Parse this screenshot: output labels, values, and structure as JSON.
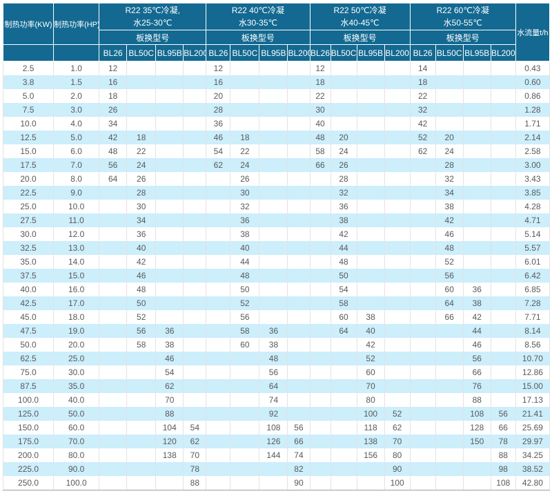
{
  "colors": {
    "header_bg": "#136991",
    "header_text": "#ffffff",
    "row_stripe": "#cdeefb",
    "row_plain": "#ffffff",
    "body_text": "#58595b"
  },
  "table": {
    "header": {
      "kw": "制热功率(KW)",
      "hp": "制热功率(HP)",
      "flow": "水流量t/h",
      "model_label": "板换型号",
      "models": [
        "BL26",
        "BL50C",
        "BL95B",
        "BL200"
      ],
      "groups": [
        {
          "line1": "R22 35℃冷凝,",
          "line2": "水25-30℃"
        },
        {
          "line1": "R22 40℃冷凝",
          "line2": "水30-35℃"
        },
        {
          "line1": "R22 50℃冷凝",
          "line2": "水40-45℃"
        },
        {
          "line1": "R22 60℃冷凝",
          "line2": "水50-55℃"
        }
      ]
    },
    "rows": [
      [
        "2.5",
        "1.0",
        "12",
        "",
        "",
        "",
        "12",
        "",
        "",
        "",
        "12",
        "",
        "",
        "",
        "14",
        "",
        "",
        "",
        "0.43"
      ],
      [
        "3.8",
        "1.5",
        "16",
        "",
        "",
        "",
        "16",
        "",
        "",
        "",
        "18",
        "",
        "",
        "",
        "18",
        "",
        "",
        "",
        "0.60"
      ],
      [
        "5.0",
        "2.0",
        "18",
        "",
        "",
        "",
        "20",
        "",
        "",
        "",
        "22",
        "",
        "",
        "",
        "22",
        "",
        "",
        "",
        "0.86"
      ],
      [
        "7.5",
        "3.0",
        "26",
        "",
        "",
        "",
        "28",
        "",
        "",
        "",
        "30",
        "",
        "",
        "",
        "32",
        "",
        "",
        "",
        "1.28"
      ],
      [
        "10.0",
        "4.0",
        "34",
        "",
        "",
        "",
        "36",
        "",
        "",
        "",
        "40",
        "",
        "",
        "",
        "42",
        "",
        "",
        "",
        "1.71"
      ],
      [
        "12.5",
        "5.0",
        "42",
        "18",
        "",
        "",
        "46",
        "18",
        "",
        "",
        "48",
        "20",
        "",
        "",
        "52",
        "20",
        "",
        "",
        "2.14"
      ],
      [
        "15.0",
        "6.0",
        "48",
        "22",
        "",
        "",
        "54",
        "22",
        "",
        "",
        "58",
        "24",
        "",
        "",
        "62",
        "24",
        "",
        "",
        "2.58"
      ],
      [
        "17.5",
        "7.0",
        "56",
        "24",
        "",
        "",
        "62",
        "24",
        "",
        "",
        "66",
        "26",
        "",
        "",
        "",
        "28",
        "",
        "",
        "3.00"
      ],
      [
        "20.0",
        "8.0",
        "64",
        "26",
        "",
        "",
        "",
        "26",
        "",
        "",
        "",
        "28",
        "",
        "",
        "",
        "32",
        "",
        "",
        "3.43"
      ],
      [
        "22.5",
        "9.0",
        "",
        "28",
        "",
        "",
        "",
        "30",
        "",
        "",
        "",
        "32",
        "",
        "",
        "",
        "34",
        "",
        "",
        "3.85"
      ],
      [
        "25.0",
        "10.0",
        "",
        "30",
        "",
        "",
        "",
        "32",
        "",
        "",
        "",
        "36",
        "",
        "",
        "",
        "38",
        "",
        "",
        "4.28"
      ],
      [
        "27.5",
        "11.0",
        "",
        "34",
        "",
        "",
        "",
        "36",
        "",
        "",
        "",
        "38",
        "",
        "",
        "",
        "42",
        "",
        "",
        "4.71"
      ],
      [
        "30.0",
        "12.0",
        "",
        "36",
        "",
        "",
        "",
        "38",
        "",
        "",
        "",
        "42",
        "",
        "",
        "",
        "46",
        "",
        "",
        "5.14"
      ],
      [
        "32.5",
        "13.0",
        "",
        "40",
        "",
        "",
        "",
        "40",
        "",
        "",
        "",
        "44",
        "",
        "",
        "",
        "48",
        "",
        "",
        "5.57"
      ],
      [
        "35.0",
        "14.0",
        "",
        "42",
        "",
        "",
        "",
        "44",
        "",
        "",
        "",
        "48",
        "",
        "",
        "",
        "52",
        "",
        "",
        "6.01"
      ],
      [
        "37.5",
        "15.0",
        "",
        "46",
        "",
        "",
        "",
        "48",
        "",
        "",
        "",
        "50",
        "",
        "",
        "",
        "56",
        "",
        "",
        "6.42"
      ],
      [
        "40.0",
        "16.0",
        "",
        "48",
        "",
        "",
        "",
        "50",
        "",
        "",
        "",
        "54",
        "",
        "",
        "",
        "60",
        "36",
        "",
        "6.85"
      ],
      [
        "42.5",
        "17.0",
        "",
        "50",
        "",
        "",
        "",
        "52",
        "",
        "",
        "",
        "58",
        "",
        "",
        "",
        "64",
        "38",
        "",
        "7.28"
      ],
      [
        "45.0",
        "18.0",
        "",
        "52",
        "",
        "",
        "",
        "56",
        "",
        "",
        "",
        "60",
        "38",
        "",
        "",
        "66",
        "42",
        "",
        "7.71"
      ],
      [
        "47.5",
        "19.0",
        "",
        "56",
        "36",
        "",
        "",
        "58",
        "36",
        "",
        "",
        "64",
        "40",
        "",
        "",
        "",
        "44",
        "",
        "8.14"
      ],
      [
        "50.0",
        "20.0",
        "",
        "58",
        "38",
        "",
        "",
        "60",
        "38",
        "",
        "",
        "",
        "42",
        "",
        "",
        "",
        "46",
        "",
        "8.56"
      ],
      [
        "62.5",
        "25.0",
        "",
        "",
        "46",
        "",
        "",
        "",
        "48",
        "",
        "",
        "",
        "52",
        "",
        "",
        "",
        "56",
        "",
        "10.70"
      ],
      [
        "75.0",
        "30.0",
        "",
        "",
        "54",
        "",
        "",
        "",
        "56",
        "",
        "",
        "",
        "60",
        "",
        "",
        "",
        "66",
        "",
        "12.86"
      ],
      [
        "87.5",
        "35.0",
        "",
        "",
        "62",
        "",
        "",
        "",
        "64",
        "",
        "",
        "",
        "70",
        "",
        "",
        "",
        "76",
        "",
        "15.00"
      ],
      [
        "100.0",
        "40.0",
        "",
        "",
        "70",
        "",
        "",
        "",
        "74",
        "",
        "",
        "",
        "80",
        "",
        "",
        "",
        "88",
        "",
        "17.13"
      ],
      [
        "125.0",
        "50.0",
        "",
        "",
        "88",
        "",
        "",
        "",
        "92",
        "",
        "",
        "",
        "100",
        "52",
        "",
        "",
        "108",
        "56",
        "21.41"
      ],
      [
        "150.0",
        "60.0",
        "",
        "",
        "104",
        "54",
        "",
        "",
        "108",
        "56",
        "",
        "",
        "118",
        "62",
        "",
        "",
        "128",
        "66",
        "25.69"
      ],
      [
        "175.0",
        "70.0",
        "",
        "",
        "120",
        "62",
        "",
        "",
        "126",
        "66",
        "",
        "",
        "138",
        "70",
        "",
        "",
        "150",
        "78",
        "29.97"
      ],
      [
        "200.0",
        "80.0",
        "",
        "",
        "138",
        "70",
        "",
        "",
        "144",
        "74",
        "",
        "",
        "156",
        "80",
        "",
        "",
        "",
        "88",
        "34.25"
      ],
      [
        "225.0",
        "90.0",
        "",
        "",
        "",
        "78",
        "",
        "",
        "",
        "82",
        "",
        "",
        "",
        "90",
        "",
        "",
        "",
        "98",
        "38.52"
      ],
      [
        "250.0",
        "100.0",
        "",
        "",
        "",
        "88",
        "",
        "",
        "",
        "90",
        "",
        "",
        "",
        "100",
        "",
        "",
        "",
        "108",
        "42.80"
      ]
    ]
  }
}
